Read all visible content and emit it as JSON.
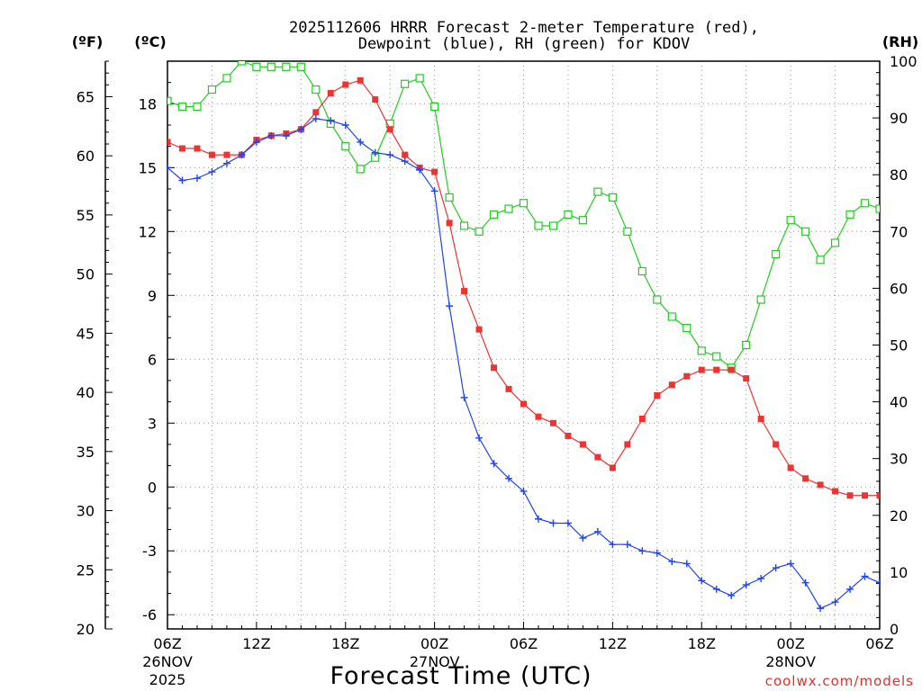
{
  "chart_data": {
    "type": "line",
    "title_line1": "2025112606 HRRR Forecast 2-meter Temperature (red),",
    "title_line2": "Dewpoint (blue), RH (green) for KDOV",
    "left_outer_unit": "(ºF)",
    "left_inner_unit": "(ºC)",
    "right_unit": "(RH)",
    "xlabel": "Forecast Time (UTC)",
    "credit": "coolwx.com/models",
    "x_hours_range": [
      0,
      48
    ],
    "x_ticks": [
      {
        "hour": 0,
        "label": "06Z",
        "sub1": "26NOV",
        "sub2": "2025"
      },
      {
        "hour": 6,
        "label": "12Z",
        "sub1": "",
        "sub2": ""
      },
      {
        "hour": 12,
        "label": "18Z",
        "sub1": "",
        "sub2": ""
      },
      {
        "hour": 18,
        "label": "00Z",
        "sub1": "27NOV",
        "sub2": ""
      },
      {
        "hour": 24,
        "label": "06Z",
        "sub1": "",
        "sub2": ""
      },
      {
        "hour": 30,
        "label": "12Z",
        "sub1": "",
        "sub2": ""
      },
      {
        "hour": 36,
        "label": "18Z",
        "sub1": "",
        "sub2": ""
      },
      {
        "hour": 42,
        "label": "00Z",
        "sub1": "28NOV",
        "sub2": ""
      },
      {
        "hour": 48,
        "label": "06Z",
        "sub1": "",
        "sub2": ""
      }
    ],
    "fahrenheit_axis": {
      "range": [
        20,
        68
      ],
      "ticks": [
        "20",
        "25",
        "30",
        "35",
        "40",
        "45",
        "50",
        "55",
        "60",
        "65"
      ]
    },
    "celsius_axis": {
      "ticks": [
        "-6",
        "-3",
        "0",
        "3",
        "6",
        "9",
        "12",
        "15",
        "18"
      ]
    },
    "rh_axis": {
      "range": [
        0,
        100
      ],
      "ticks": [
        "0",
        "10",
        "20",
        "30",
        "40",
        "50",
        "60",
        "70",
        "80",
        "90",
        "100"
      ]
    },
    "colors": {
      "temperature": "#ee3333",
      "dewpoint": "#2244ee",
      "rh": "#22cc22",
      "grid": "#999999"
    },
    "series": [
      {
        "name": "Temperature",
        "unit": "C",
        "values": [
          16.2,
          15.9,
          15.9,
          15.6,
          15.6,
          15.6,
          16.3,
          16.5,
          16.6,
          16.8,
          17.6,
          18.5,
          18.9,
          19.1,
          18.2,
          16.8,
          15.6,
          15.0,
          14.8,
          12.4,
          9.2,
          7.4,
          5.6,
          4.6,
          3.9,
          3.3,
          3.0,
          2.4,
          2.0,
          1.4,
          0.9,
          2.0,
          3.2,
          4.3,
          4.8,
          5.2,
          5.5,
          5.5,
          5.5,
          5.1,
          3.2,
          2.0,
          0.9,
          0.4,
          0.1,
          -0.2,
          -0.4,
          -0.4,
          -0.4
        ]
      },
      {
        "name": "Dewpoint",
        "unit": "C",
        "values": [
          15.0,
          14.4,
          14.5,
          14.8,
          15.2,
          15.6,
          16.2,
          16.5,
          16.5,
          16.8,
          17.3,
          17.2,
          17.0,
          16.2,
          15.7,
          15.6,
          15.3,
          14.9,
          13.9,
          8.5,
          4.2,
          2.3,
          1.1,
          0.4,
          -0.2,
          -1.5,
          -1.7,
          -1.7,
          -2.4,
          -2.1,
          -2.7,
          -2.7,
          -3.0,
          -3.1,
          -3.5,
          -3.6,
          -4.4,
          -4.8,
          -5.1,
          -4.6,
          -4.3,
          -3.8,
          -3.6,
          -4.5,
          -5.7,
          -5.4,
          -4.8,
          -4.2,
          -4.5
        ]
      },
      {
        "name": "RH",
        "unit": "%",
        "values": [
          93,
          92,
          92,
          95,
          97,
          100,
          99,
          99,
          99,
          99,
          95,
          89,
          85,
          81,
          83,
          89,
          96,
          97,
          92,
          76,
          71,
          70,
          73,
          74,
          75,
          71,
          71,
          73,
          72,
          77,
          76,
          70,
          63,
          58,
          55,
          53,
          49,
          48,
          46,
          50,
          58,
          66,
          72,
          70,
          65,
          68,
          73,
          75,
          74
        ]
      }
    ]
  }
}
